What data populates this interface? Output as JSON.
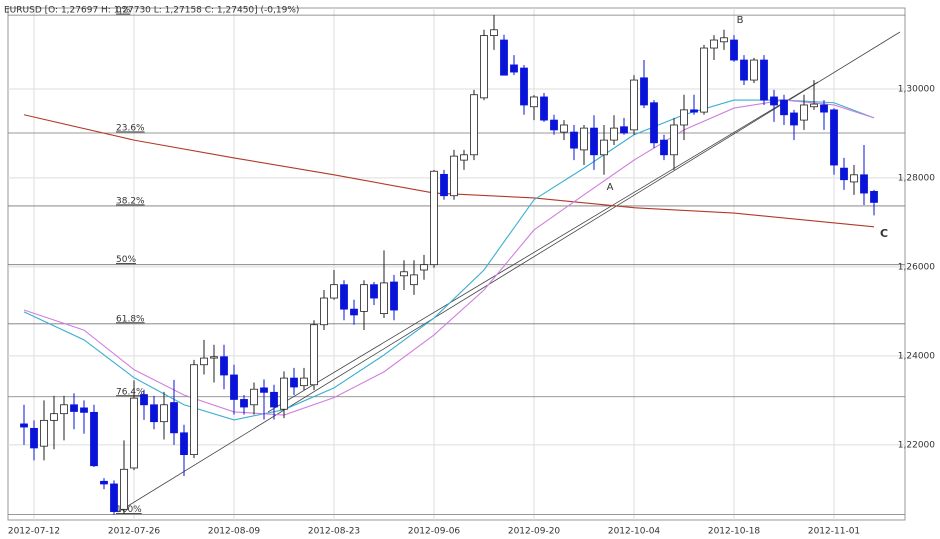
{
  "chart_data": {
    "type": "candlestick",
    "title": "EURUSD [O: 1,27697  H: 1,27730  L: 1,27158  C: 1,27450] (-0,19%)",
    "categories": [
      null,
      "2012-07-12",
      null,
      null,
      null,
      null,
      null,
      null,
      null,
      null,
      null,
      "2012-07-26",
      null,
      null,
      null,
      null,
      null,
      null,
      null,
      null,
      null,
      "2012-08-09",
      null,
      null,
      null,
      null,
      null,
      null,
      null,
      null,
      null,
      "2012-08-23",
      null,
      null,
      null,
      null,
      null,
      null,
      null,
      null,
      null,
      "2012-09-06",
      null,
      null,
      null,
      null,
      null,
      null,
      null,
      null,
      null,
      "2012-09-20",
      null,
      null,
      null,
      null,
      null,
      null,
      null,
      null,
      null,
      "2012-10-04",
      null,
      null,
      null,
      null,
      null,
      null,
      null,
      null,
      null,
      "2012-10-18",
      null,
      null,
      null,
      null,
      null,
      null,
      null,
      null,
      null,
      "2012-11-01",
      null,
      null,
      null,
      null
    ],
    "open": [
      1.2247,
      1.2237,
      1.2197,
      1.2255,
      1.227,
      1.229,
      1.2283,
      1.2273,
      1.2118,
      1.2112,
      1.2055,
      1.2148,
      1.2313,
      1.229,
      1.2252,
      1.2295,
      1.2227,
      1.2178,
      1.238,
      1.2395,
      1.2398,
      1.2357,
      1.2302,
      1.229,
      1.2328,
      1.2318,
      1.228,
      1.235,
      1.2333,
      1.2335,
      1.247,
      1.253,
      1.256,
      1.2505,
      1.25,
      1.256,
      1.2495,
      1.2566,
      1.258,
      1.256,
      1.2593,
      1.2605,
      1.2808,
      1.276,
      1.284,
      1.2852,
      1.298,
      1.312,
      1.311,
      1.3054,
      1.3047,
      1.296,
      1.2982,
      1.293,
      1.2903,
      1.2903,
      1.2863,
      1.2912,
      1.2852,
      1.2885,
      1.2915,
      1.2908,
      1.3025,
      1.2969,
      1.2885,
      1.2852,
      1.2919,
      1.2953,
      1.2948,
      1.3092,
      1.3106,
      1.311,
      1.3065,
      1.302,
      1.3065,
      1.2982,
      1.2975,
      1.2946,
      1.293,
      1.296,
      1.2964,
      1.2953,
      1.2822,
      1.2791,
      1.2807,
      1.27697
    ],
    "high": [
      1.229,
      1.2255,
      1.23,
      1.231,
      1.231,
      1.2316,
      1.23,
      1.229,
      1.2125,
      1.212,
      1.221,
      1.2345,
      1.2324,
      1.231,
      1.2319,
      1.2346,
      1.2245,
      1.2391,
      1.2436,
      1.2425,
      1.2425,
      1.238,
      1.2312,
      1.234,
      1.2347,
      1.2335,
      1.2365,
      1.2373,
      1.2373,
      1.248,
      1.2548,
      1.2593,
      1.257,
      1.2526,
      1.257,
      1.2566,
      1.2637,
      1.2582,
      1.2615,
      1.2615,
      1.2627,
      1.2818,
      1.2818,
      1.2863,
      1.2863,
      1.2998,
      1.3133,
      1.3166,
      1.3122,
      1.3076,
      1.3054,
      1.2986,
      1.2991,
      1.2942,
      1.293,
      1.2919,
      1.2919,
      1.2941,
      1.2919,
      1.2941,
      1.2935,
      1.3031,
      1.3065,
      1.2975,
      1.2897,
      1.2935,
      1.2987,
      1.2987,
      1.3099,
      1.3121,
      1.3133,
      1.3121,
      1.3076,
      1.307,
      1.3076,
      1.2998,
      1.2987,
      1.2953,
      1.2987,
      1.302,
      1.2975,
      1.2957,
      1.2845,
      1.2829,
      1.2874,
      1.2773
    ],
    "low": [
      1.22,
      1.2165,
      1.2165,
      1.219,
      1.221,
      1.2235,
      1.2225,
      1.215,
      1.21,
      1.2043,
      1.2045,
      1.2143,
      1.2256,
      1.2235,
      1.2212,
      1.22,
      1.213,
      1.217,
      1.2358,
      1.234,
      1.2325,
      1.2268,
      1.2268,
      1.2268,
      1.2257,
      1.2257,
      1.226,
      1.2312,
      1.2323,
      1.2323,
      1.2458,
      1.2526,
      1.248,
      1.247,
      1.2458,
      1.2514,
      1.2485,
      1.248,
      1.2548,
      1.2537,
      1.2571,
      1.2598,
      1.2751,
      1.2751,
      1.2818,
      1.284,
      1.2975,
      1.3088,
      1.3031,
      1.3031,
      1.2942,
      1.293,
      1.2926,
      1.2897,
      1.2885,
      1.284,
      1.2829,
      1.2818,
      1.2807,
      1.2874,
      1.2897,
      1.2897,
      1.2957,
      1.2867,
      1.284,
      1.2818,
      1.2885,
      1.2942,
      1.2942,
      1.3065,
      1.3088,
      1.3061,
      1.3009,
      1.3013,
      1.2964,
      1.2926,
      1.2919,
      1.2885,
      1.2908,
      1.2953,
      1.2908,
      1.2807,
      1.2773,
      1.2762,
      1.2739,
      1.27158
    ],
    "close": [
      1.224,
      1.2193,
      1.2255,
      1.227,
      1.229,
      1.2275,
      1.2273,
      1.2153,
      1.2112,
      1.205,
      1.2145,
      1.2305,
      1.229,
      1.2252,
      1.229,
      1.2227,
      1.2178,
      1.238,
      1.2395,
      1.2398,
      1.2357,
      1.2302,
      1.2285,
      1.2325,
      1.2318,
      1.2285,
      1.235,
      1.233,
      1.235,
      1.247,
      1.253,
      1.256,
      1.2505,
      1.2492,
      1.256,
      1.253,
      1.2564,
      1.2503,
      1.2589,
      1.2582,
      1.2605,
      1.2815,
      1.276,
      1.2849,
      1.2852,
      1.2987,
      1.312,
      1.3133,
      1.3031,
      1.3038,
      1.2964,
      1.2982,
      1.293,
      1.2908,
      1.2919,
      1.2867,
      1.2912,
      1.2852,
      1.2885,
      1.2912,
      1.2901,
      1.302,
      1.2964,
      1.2879,
      1.2852,
      1.2919,
      1.2953,
      1.2948,
      1.3092,
      1.311,
      1.3115,
      1.3065,
      1.302,
      1.3065,
      1.2975,
      1.2964,
      1.2942,
      1.2919,
      1.2964,
      1.2966,
      1.2948,
      1.2829,
      1.2796,
      1.2807,
      1.2766,
      1.2745
    ],
    "up_color": "#ffffff",
    "down_color": "#0a14d8",
    "lines": [
      {
        "color": "#b23a2a",
        "x": [
          0,
          11,
          21,
          31,
          41,
          51,
          61,
          71,
          85
        ],
        "values": [
          1.2942,
          1.2885,
          1.2845,
          1.2807,
          1.2766,
          1.2755,
          1.2733,
          1.2721,
          1.269
        ]
      },
      {
        "color": "#3aaed0",
        "x": [
          0,
          6,
          11,
          16,
          21,
          26,
          31,
          36,
          41,
          46,
          51,
          56,
          61,
          66,
          71,
          76,
          81,
          85
        ],
        "values": [
          1.2499,
          1.2436,
          1.2351,
          1.229,
          1.2256,
          1.2279,
          1.2328,
          1.2402,
          1.2485,
          1.2593,
          1.2751,
          1.2822,
          1.2897,
          1.2942,
          1.2975,
          1.2975,
          1.2969,
          1.2935
        ]
      },
      {
        "color": "#cf80de",
        "x": [
          0,
          6,
          11,
          16,
          21,
          26,
          31,
          36,
          41,
          46,
          51,
          56,
          61,
          66,
          71,
          76,
          81,
          85
        ],
        "values": [
          1.2503,
          1.2458,
          1.2369,
          1.2312,
          1.2274,
          1.2267,
          1.2306,
          1.2364,
          1.2447,
          1.2548,
          1.2683,
          1.2762,
          1.284,
          1.2908,
          1.2957,
          1.2975,
          1.2964,
          1.2935
        ]
      }
    ],
    "fib_levels": [
      {
        "value": 1.3166,
        "label": "0%"
      },
      {
        "value": 1.2901,
        "label": "23.6%"
      },
      {
        "value": 1.2737,
        "label": "38.2%"
      },
      {
        "value": 1.2605,
        "label": "50%"
      },
      {
        "value": 1.2472,
        "label": "61.8%"
      },
      {
        "value": 1.2308,
        "label": "76.4%"
      },
      {
        "value": 1.2043,
        "label": "100%"
      }
    ],
    "annotations": [
      "A",
      "B",
      "C"
    ],
    "ylim": [
      1.2031,
      1.3182
    ],
    "yticks": [
      {
        "value": 1.22,
        "label": "1,22000"
      },
      {
        "value": 1.24,
        "label": "1,24000"
      },
      {
        "value": 1.26,
        "label": "1,26000"
      },
      {
        "value": 1.28,
        "label": "1,28000"
      },
      {
        "value": 1.3,
        "label": "1,30000"
      }
    ],
    "grid": true
  }
}
